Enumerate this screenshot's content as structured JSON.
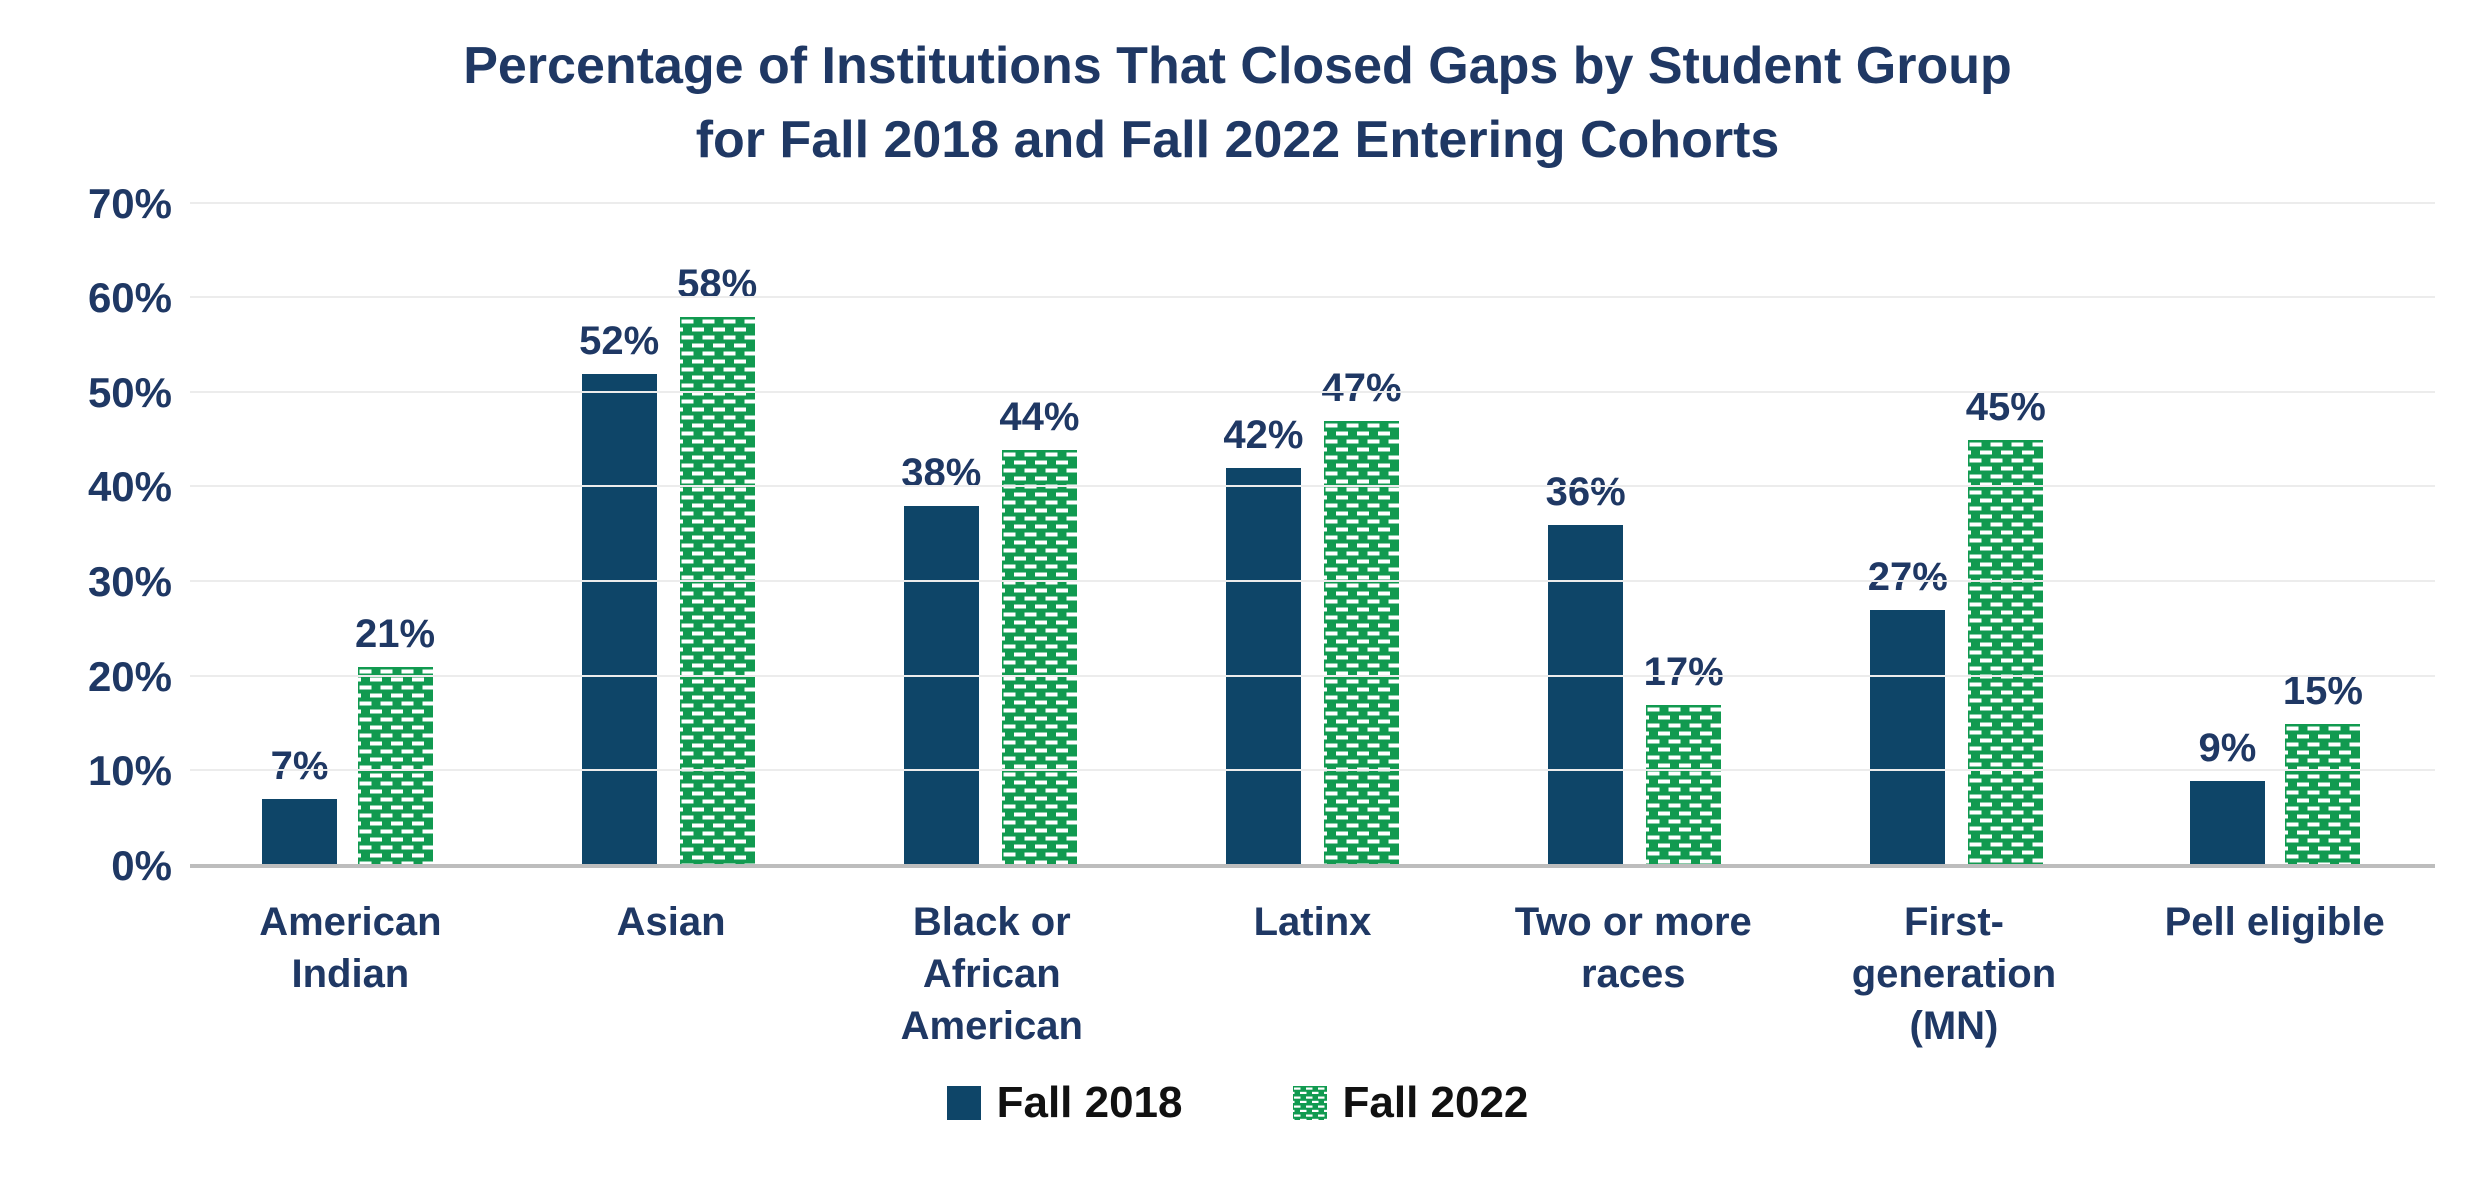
{
  "title": {
    "line1": "Percentage of Institutions That Closed Gaps by Student Group",
    "line2": "for Fall 2018 and Fall 2022 Entering Cohorts"
  },
  "colors": {
    "navy_bar": "#0e4568",
    "green_bar": "#119a50",
    "text_navy": "#1f3864",
    "legend_text": "#111111",
    "gridline": "#ececec",
    "baseline": "#bdbdbd",
    "pattern_dash": "#ffffff",
    "page_bg": "#ffffff"
  },
  "chart_data": {
    "type": "bar",
    "title": "Percentage of Institutions That Closed Gaps by Student Group for Fall 2018 and Fall 2022 Entering Cohorts",
    "categories": [
      "American Indian",
      "Asian",
      "Black or African American",
      "Latinx",
      "Two or more races",
      "First-generation (MN)",
      "Pell eligible"
    ],
    "series": [
      {
        "name": "Fall 2018",
        "style": "solid-navy",
        "values": [
          7,
          52,
          38,
          42,
          36,
          27,
          9
        ],
        "labels": [
          "7%",
          "52%",
          "38%",
          "42%",
          "36%",
          "27%",
          "9%"
        ]
      },
      {
        "name": "Fall 2022",
        "style": "green-dash-pattern",
        "values": [
          21,
          58,
          44,
          47,
          17,
          45,
          15
        ],
        "labels": [
          "21%",
          "58%",
          "44%",
          "47%",
          "17%",
          "45%",
          "15%"
        ]
      }
    ],
    "xlabel": "",
    "ylabel": "",
    "ylim": [
      0,
      70
    ],
    "ytick_step": 10,
    "yticks": [
      {
        "label": "0%",
        "value": 0
      },
      {
        "label": "10%",
        "value": 10
      },
      {
        "label": "20%",
        "value": 20
      },
      {
        "label": "30%",
        "value": 30
      },
      {
        "label": "40%",
        "value": 40
      },
      {
        "label": "50%",
        "value": 50
      },
      {
        "label": "60%",
        "value": 60
      },
      {
        "label": "70%",
        "value": 70
      }
    ],
    "grid": true,
    "legend_position": "bottom"
  },
  "legend": {
    "items": [
      {
        "label": "Fall 2018",
        "swatch": "navy-solid"
      },
      {
        "label": "Fall 2022",
        "swatch": "green-pattern"
      }
    ]
  }
}
